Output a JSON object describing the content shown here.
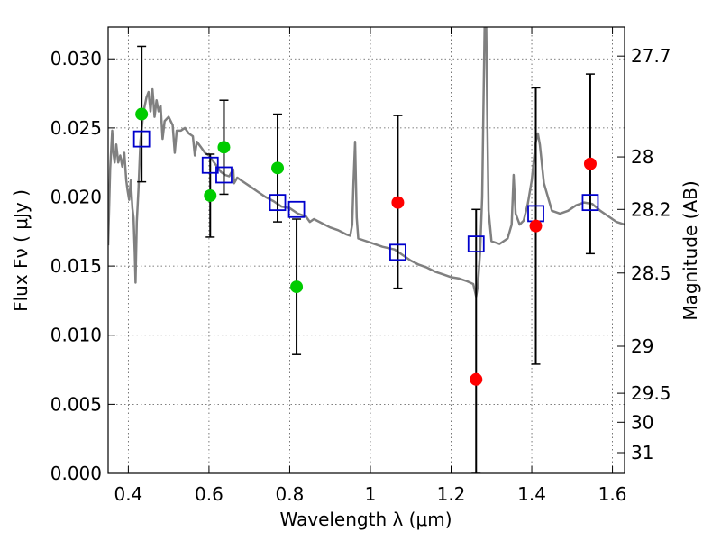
{
  "chart_data": {
    "type": "scatter",
    "xlabel": "Wavelength  λ (μm)",
    "ylabel": "Flux  Fν  ( μJy )",
    "y2label": "Magnitude (AB)",
    "xlim": [
      0.35,
      1.63
    ],
    "ylim": [
      0.0,
      0.0323
    ],
    "grid": true,
    "x_ticks": [
      {
        "value": 0.4,
        "label": "0.4"
      },
      {
        "value": 0.6,
        "label": "0.6"
      },
      {
        "value": 0.8,
        "label": "0.8"
      },
      {
        "value": 1.0,
        "label": "1"
      },
      {
        "value": 1.2,
        "label": "1.2"
      },
      {
        "value": 1.4,
        "label": "1.4"
      },
      {
        "value": 1.6,
        "label": "1.6"
      }
    ],
    "y_ticks": [
      {
        "value": 0.0,
        "label": "0.000"
      },
      {
        "value": 0.005,
        "label": "0.005"
      },
      {
        "value": 0.01,
        "label": "0.010"
      },
      {
        "value": 0.015,
        "label": "0.015"
      },
      {
        "value": 0.02,
        "label": "0.020"
      },
      {
        "value": 0.025,
        "label": "0.025"
      },
      {
        "value": 0.03,
        "label": "0.030"
      }
    ],
    "y2_ticks": [
      {
        "flux": 0.0302,
        "label": "27.7"
      },
      {
        "flux": 0.0229,
        "label": "28"
      },
      {
        "flux": 0.0191,
        "label": "28.2"
      },
      {
        "flux": 0.0145,
        "label": "28.5"
      },
      {
        "flux": 0.0092,
        "label": "29"
      },
      {
        "flux": 0.0058,
        "label": "29.5"
      },
      {
        "flux": 0.0037,
        "label": "30"
      },
      {
        "flux": 0.0015,
        "label": "31"
      }
    ],
    "colors": {
      "spectrum": "#808080",
      "model": "#0000cc",
      "green": "#00cc00",
      "red": "#ff0000",
      "errorbar": "#000000",
      "grid": "#555555"
    },
    "spectrum": [
      [
        0.35,
        0.0165
      ],
      [
        0.355,
        0.022
      ],
      [
        0.36,
        0.0248
      ],
      [
        0.363,
        0.0232
      ],
      [
        0.366,
        0.0225
      ],
      [
        0.37,
        0.0238
      ],
      [
        0.375,
        0.0225
      ],
      [
        0.38,
        0.023
      ],
      [
        0.385,
        0.0222
      ],
      [
        0.39,
        0.0232
      ],
      [
        0.395,
        0.0212
      ],
      [
        0.398,
        0.0205
      ],
      [
        0.402,
        0.0198
      ],
      [
        0.406,
        0.0212
      ],
      [
        0.41,
        0.0192
      ],
      [
        0.413,
        0.0185
      ],
      [
        0.416,
        0.016
      ],
      [
        0.418,
        0.0138
      ],
      [
        0.421,
        0.0182
      ],
      [
        0.425,
        0.0205
      ],
      [
        0.43,
        0.024
      ],
      [
        0.435,
        0.0255
      ],
      [
        0.44,
        0.0265
      ],
      [
        0.445,
        0.0272
      ],
      [
        0.45,
        0.0276
      ],
      [
        0.455,
        0.0262
      ],
      [
        0.46,
        0.0278
      ],
      [
        0.465,
        0.0258
      ],
      [
        0.47,
        0.027
      ],
      [
        0.475,
        0.0262
      ],
      [
        0.48,
        0.0266
      ],
      [
        0.485,
        0.0242
      ],
      [
        0.49,
        0.0255
      ],
      [
        0.5,
        0.0258
      ],
      [
        0.51,
        0.0252
      ],
      [
        0.515,
        0.0232
      ],
      [
        0.52,
        0.0248
      ],
      [
        0.53,
        0.0248
      ],
      [
        0.54,
        0.025
      ],
      [
        0.55,
        0.0246
      ],
      [
        0.56,
        0.0244
      ],
      [
        0.565,
        0.023
      ],
      [
        0.57,
        0.024
      ],
      [
        0.58,
        0.0236
      ],
      [
        0.59,
        0.0232
      ],
      [
        0.6,
        0.023
      ],
      [
        0.61,
        0.0226
      ],
      [
        0.62,
        0.0222
      ],
      [
        0.63,
        0.0218
      ],
      [
        0.64,
        0.0216
      ],
      [
        0.65,
        0.0215
      ],
      [
        0.66,
        0.022
      ],
      [
        0.662,
        0.021
      ],
      [
        0.67,
        0.0214
      ],
      [
        0.68,
        0.0212
      ],
      [
        0.7,
        0.0208
      ],
      [
        0.72,
        0.0204
      ],
      [
        0.74,
        0.02
      ],
      [
        0.76,
        0.0197
      ],
      [
        0.78,
        0.0193
      ],
      [
        0.8,
        0.0192
      ],
      [
        0.82,
        0.0188
      ],
      [
        0.84,
        0.0186
      ],
      [
        0.85,
        0.0182
      ],
      [
        0.86,
        0.0184
      ],
      [
        0.88,
        0.0181
      ],
      [
        0.9,
        0.0178
      ],
      [
        0.92,
        0.0176
      ],
      [
        0.94,
        0.0173
      ],
      [
        0.95,
        0.0172
      ],
      [
        0.955,
        0.018
      ],
      [
        0.958,
        0.021
      ],
      [
        0.962,
        0.024
      ],
      [
        0.966,
        0.0185
      ],
      [
        0.97,
        0.017
      ],
      [
        1.0,
        0.0167
      ],
      [
        1.03,
        0.0164
      ],
      [
        1.06,
        0.0162
      ],
      [
        1.08,
        0.0158
      ],
      [
        1.1,
        0.0154
      ],
      [
        1.12,
        0.0151
      ],
      [
        1.14,
        0.0149
      ],
      [
        1.16,
        0.0146
      ],
      [
        1.18,
        0.0144
      ],
      [
        1.2,
        0.0142
      ],
      [
        1.22,
        0.0141
      ],
      [
        1.24,
        0.0139
      ],
      [
        1.255,
        0.0137
      ],
      [
        1.262,
        0.0128
      ],
      [
        1.266,
        0.0135
      ],
      [
        1.272,
        0.016
      ],
      [
        1.277,
        0.02
      ],
      [
        1.28,
        0.026
      ],
      [
        1.283,
        0.0323
      ],
      [
        1.287,
        0.0323
      ],
      [
        1.29,
        0.025
      ],
      [
        1.293,
        0.019
      ],
      [
        1.3,
        0.0168
      ],
      [
        1.32,
        0.0166
      ],
      [
        1.34,
        0.017
      ],
      [
        1.35,
        0.018
      ],
      [
        1.355,
        0.0216
      ],
      [
        1.36,
        0.0188
      ],
      [
        1.37,
        0.018
      ],
      [
        1.38,
        0.0183
      ],
      [
        1.39,
        0.0195
      ],
      [
        1.4,
        0.0212
      ],
      [
        1.41,
        0.024
      ],
      [
        1.415,
        0.0246
      ],
      [
        1.42,
        0.0238
      ],
      [
        1.43,
        0.021
      ],
      [
        1.45,
        0.019
      ],
      [
        1.47,
        0.0188
      ],
      [
        1.49,
        0.019
      ],
      [
        1.51,
        0.0194
      ],
      [
        1.53,
        0.0196
      ],
      [
        1.55,
        0.0195
      ],
      [
        1.57,
        0.019
      ],
      [
        1.59,
        0.0186
      ],
      [
        1.61,
        0.0182
      ],
      [
        1.63,
        0.018
      ]
    ],
    "model_points": [
      {
        "x": 0.433,
        "y": 0.0242
      },
      {
        "x": 0.603,
        "y": 0.0223
      },
      {
        "x": 0.637,
        "y": 0.0216
      },
      {
        "x": 0.77,
        "y": 0.0196
      },
      {
        "x": 0.817,
        "y": 0.0191
      },
      {
        "x": 1.068,
        "y": 0.016
      },
      {
        "x": 1.262,
        "y": 0.0166
      },
      {
        "x": 1.41,
        "y": 0.0188
      },
      {
        "x": 1.545,
        "y": 0.0196
      }
    ],
    "observed_green": [
      {
        "x": 0.433,
        "y": 0.026,
        "lo": 0.0211,
        "hi": 0.0309
      },
      {
        "x": 0.603,
        "y": 0.0201,
        "lo": 0.0171,
        "hi": 0.0231
      },
      {
        "x": 0.637,
        "y": 0.0236,
        "lo": 0.0202,
        "hi": 0.027
      },
      {
        "x": 0.77,
        "y": 0.0221,
        "lo": 0.0182,
        "hi": 0.026
      },
      {
        "x": 0.817,
        "y": 0.0135,
        "lo": 0.0086,
        "hi": 0.0184
      }
    ],
    "observed_red": [
      {
        "x": 1.068,
        "y": 0.0196,
        "lo": 0.0134,
        "hi": 0.0259
      },
      {
        "x": 1.262,
        "y": 0.0068,
        "lo": 0.0,
        "hi": 0.0191
      },
      {
        "x": 1.41,
        "y": 0.0179,
        "lo": 0.0079,
        "hi": 0.0279
      },
      {
        "x": 1.545,
        "y": 0.0224,
        "lo": 0.0159,
        "hi": 0.0289
      }
    ]
  }
}
